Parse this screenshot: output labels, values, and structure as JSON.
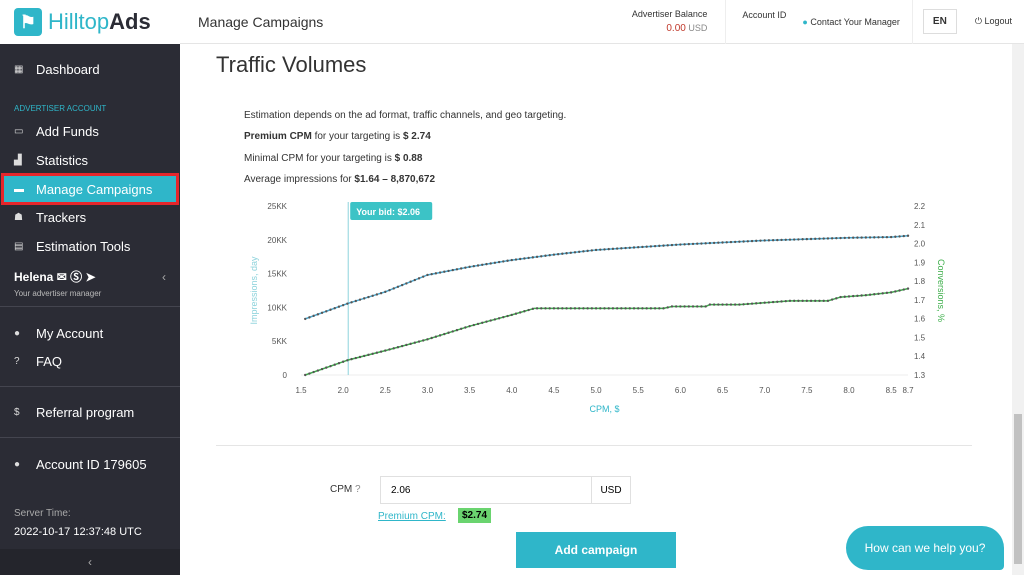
{
  "brand": {
    "name_a": "Hilltop",
    "name_b": "Ads"
  },
  "header": {
    "title": "Manage Campaigns",
    "balance_label": "Advertiser Balance",
    "balance_value": "0.00",
    "balance_currency": "USD",
    "account_label": "Account ID",
    "contact": "Contact Your Manager",
    "lang": "EN",
    "logout": "Logout"
  },
  "sidebar": {
    "dashboard": "Dashboard",
    "section": "ADVERTISER ACCOUNT",
    "items": [
      "Add Funds",
      "Statistics",
      "Manage Campaigns",
      "Trackers",
      "Estimation Tools"
    ],
    "manager_name": "Helena",
    "manager_role": "Your advertiser manager",
    "my_account": "My Account",
    "faq": "FAQ",
    "referral": "Referral program",
    "account_id": "Account ID 179605",
    "server_label": "Server Time:",
    "server_time": "2022-10-17 12:37:48 UTC"
  },
  "page": {
    "heading": "Traffic Volumes",
    "line1": "Estimation depends on the ad format, traffic channels, and geo targeting.",
    "premium_b": "Premium CPM",
    "premium_t": " for your targeting is ",
    "premium_v": "$ 2.74",
    "minimal_t": "Minimal CPM for your targeting is ",
    "minimal_v": "$ 0.88",
    "avg_t": "Average impressions for ",
    "avg_v": "$1.64 – 8,870,672"
  },
  "form": {
    "cpm_label": "CPM",
    "cpm_value": "2.06",
    "currency": "USD",
    "premium_link": "Premium CPM:",
    "premium_badge": "$2.74",
    "add_button": "Add campaign"
  },
  "chat": "How can we help you?",
  "colors": {
    "accent": "#2fb6c9",
    "impressions": "#4aa8cf",
    "conversions": "#3dae4a",
    "active_outline": "#e5262b"
  },
  "chart_data": {
    "type": "line",
    "xlabel": "CPM, $",
    "ylabel": "Impressions, day",
    "y2label": "Conversions, %",
    "xlim": [
      1.5,
      8.7
    ],
    "ylim": [
      0,
      25
    ],
    "y2lim": [
      1.3,
      2.2
    ],
    "xticks": [
      "1.5",
      "2.0",
      "2.5",
      "3.0",
      "3.5",
      "4.0",
      "4.5",
      "5.0",
      "5.5",
      "6.0",
      "6.5",
      "7.0",
      "7.5",
      "8.0",
      "8.5",
      "8.7"
    ],
    "yticks": [
      "0",
      "5KK",
      "10KK",
      "15KK",
      "20KK",
      "25KK"
    ],
    "y2ticks": [
      "1.3",
      "1.4",
      "1.5",
      "1.6",
      "1.7",
      "1.8",
      "1.9",
      "2.0",
      "2.1",
      "2.2"
    ],
    "bid": 2.06,
    "bid_label": "Your bid: $2.06",
    "series": [
      {
        "axis": "left",
        "x": [
          1.55,
          2.06,
          2.5,
          3.0,
          3.5,
          4.0,
          4.5,
          5.0,
          5.5,
          6.0,
          6.5,
          7.0,
          7.5,
          8.0,
          8.5,
          8.7
        ],
        "y": [
          8.3,
          10.6,
          12.3,
          14.8,
          16.0,
          17.0,
          17.8,
          18.5,
          18.9,
          19.3,
          19.6,
          19.9,
          20.1,
          20.3,
          20.4,
          20.6
        ]
      },
      {
        "axis": "right",
        "x": [
          1.55,
          2.06,
          2.5,
          3.0,
          3.5,
          4.0,
          4.27,
          5.0,
          5.8,
          5.9,
          6.3,
          6.35,
          6.7,
          7.0,
          7.3,
          7.75,
          7.9,
          8.2,
          8.5,
          8.7
        ],
        "y": [
          1.3,
          1.38,
          1.43,
          1.49,
          1.56,
          1.62,
          1.655,
          1.655,
          1.655,
          1.665,
          1.665,
          1.675,
          1.675,
          1.685,
          1.695,
          1.695,
          1.715,
          1.725,
          1.74,
          1.76
        ]
      }
    ]
  }
}
